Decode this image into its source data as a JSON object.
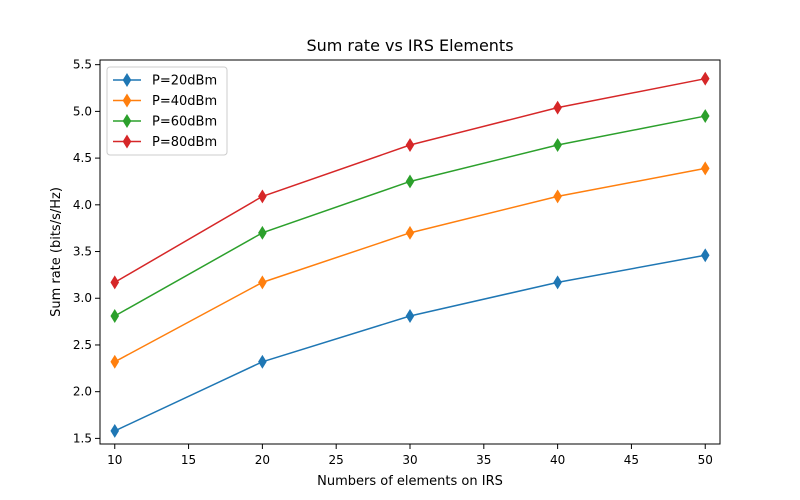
{
  "chart_data": {
    "type": "line",
    "title": "Sum rate vs IRS Elements",
    "xlabel": "Numbers of elements on IRS",
    "ylabel": "Sum rate (bits/s/Hz)",
    "x": [
      10,
      20,
      30,
      40,
      50
    ],
    "xlim": [
      9,
      51
    ],
    "ylim": [
      1.44,
      5.55
    ],
    "xticks": [
      10,
      15,
      20,
      25,
      30,
      35,
      40,
      45,
      50
    ],
    "xtick_labels": [
      "10",
      "15",
      "20",
      "25",
      "30",
      "35",
      "40",
      "45",
      "50"
    ],
    "yticks": [
      1.5,
      2.0,
      2.5,
      3.0,
      3.5,
      4.0,
      4.5,
      5.0,
      5.5
    ],
    "ytick_labels": [
      "1.5",
      "2.0",
      "2.5",
      "3.0",
      "3.5",
      "4.0",
      "4.5",
      "5.0",
      "5.5"
    ],
    "grid": false,
    "legend_position": "top-left",
    "marker": "diamond",
    "series": [
      {
        "name": "P=20dBm",
        "color": "#1f77b4",
        "values": [
          1.58,
          2.32,
          2.81,
          3.17,
          3.46
        ]
      },
      {
        "name": "P=40dBm",
        "color": "#ff7f0e",
        "values": [
          2.32,
          3.17,
          3.7,
          4.09,
          4.39
        ]
      },
      {
        "name": "P=60dBm",
        "color": "#2ca02c",
        "values": [
          2.81,
          3.7,
          4.25,
          4.64,
          4.95
        ]
      },
      {
        "name": "P=80dBm",
        "color": "#d62728",
        "values": [
          3.17,
          4.09,
          4.64,
          5.04,
          5.35
        ]
      }
    ]
  }
}
